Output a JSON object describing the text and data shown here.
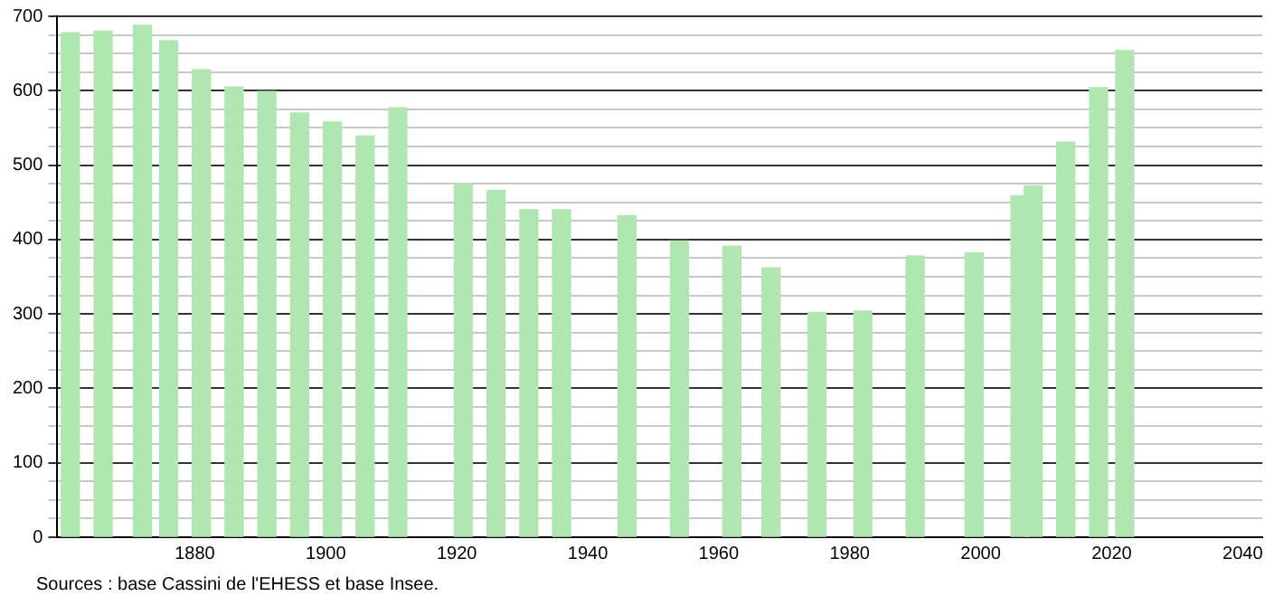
{
  "chart_data": {
    "type": "bar",
    "x": [
      1861,
      1866,
      1872,
      1876,
      1881,
      1886,
      1891,
      1896,
      1901,
      1906,
      1911,
      1921,
      1926,
      1931,
      1936,
      1946,
      1954,
      1962,
      1968,
      1975,
      1982,
      1990,
      1999,
      2006,
      2008,
      2013,
      2018,
      2022
    ],
    "values": [
      678,
      680,
      688,
      667,
      628,
      605,
      599,
      570,
      558,
      539,
      577,
      475,
      466,
      440,
      440,
      432,
      398,
      391,
      362,
      302,
      304,
      378,
      382,
      459,
      472,
      531,
      604,
      654
    ],
    "color": "#b0e6b0",
    "xlim": [
      1859,
      2043
    ],
    "xticks": [
      1880,
      1900,
      1920,
      1940,
      1960,
      1980,
      2000,
      2020,
      2040
    ],
    "ylim": [
      0,
      700
    ],
    "yticks": [
      0,
      {
        "value": 25,
        "label": null
      },
      {
        "value": 50,
        "label": null
      },
      {
        "value": 75,
        "label": null
      },
      100,
      {
        "value": 125,
        "label": null
      },
      {
        "value": 150,
        "label": null
      },
      {
        "value": 175,
        "label": null
      },
      200,
      {
        "value": 225,
        "label": null
      },
      {
        "value": 250,
        "label": null
      },
      {
        "value": 275,
        "label": null
      },
      300,
      {
        "value": 325,
        "label": null
      },
      {
        "value": 350,
        "label": null
      },
      {
        "value": 375,
        "label": null
      },
      400,
      {
        "value": 425,
        "label": null
      },
      {
        "value": 450,
        "label": null
      },
      {
        "value": 475,
        "label": null
      },
      500,
      {
        "value": 525,
        "label": null
      },
      {
        "value": 550,
        "label": null
      },
      {
        "value": 575,
        "label": null
      },
      600,
      {
        "value": 625,
        "label": null
      },
      {
        "value": 650,
        "label": null
      },
      {
        "value": 675,
        "label": null
      },
      700
    ],
    "grid": "y",
    "legend": false,
    "annotations": [
      "Sources : base Cassini de l'EHESS et base Insee."
    ]
  }
}
